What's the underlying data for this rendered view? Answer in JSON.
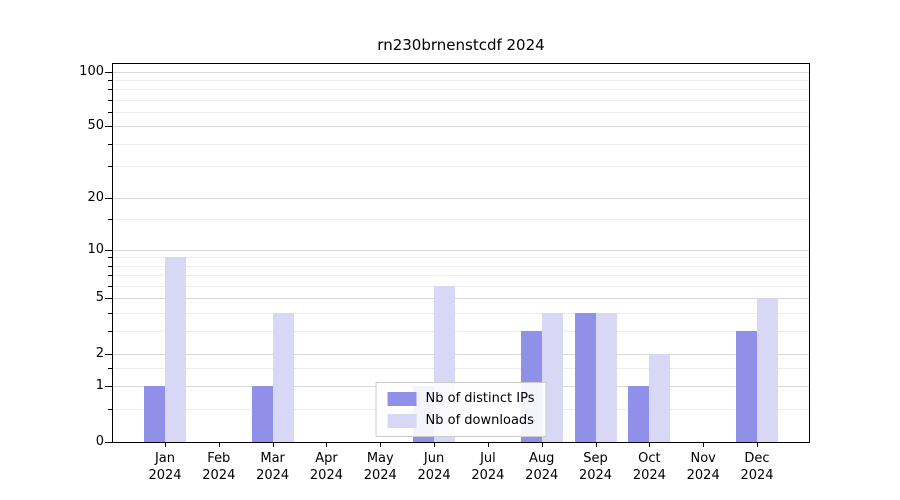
{
  "title": "rn230brnenstcdf 2024",
  "chart_data": {
    "type": "bar",
    "title": "rn230brnenstcdf 2024",
    "months": [
      "Jan",
      "Feb",
      "Mar",
      "Apr",
      "May",
      "Jun",
      "Jul",
      "Aug",
      "Sep",
      "Oct",
      "Nov",
      "Dec"
    ],
    "year": "2024",
    "series": [
      {
        "name": "Nb of distinct IPs",
        "color": "#9090e8",
        "values": [
          1,
          0,
          1,
          0,
          0,
          1,
          0,
          3,
          4,
          1,
          0,
          3
        ]
      },
      {
        "name": "Nb of downloads",
        "color": "#d8d8f6",
        "values": [
          9,
          0,
          4,
          0,
          0,
          6,
          0,
          4,
          4,
          2,
          0,
          5
        ]
      }
    ],
    "xlabel": "",
    "ylabel": "",
    "y_scale": "log10(1+v)",
    "y_ticks": [
      0,
      1,
      2,
      5,
      10,
      20,
      50,
      100
    ],
    "y_minor_ticks": [
      0.5,
      1.5,
      3,
      4,
      6,
      7,
      8,
      9,
      15,
      30,
      40,
      60,
      70,
      80,
      90
    ],
    "ylim": [
      0,
      110
    ],
    "grid": true,
    "legend_position": "lower center"
  }
}
